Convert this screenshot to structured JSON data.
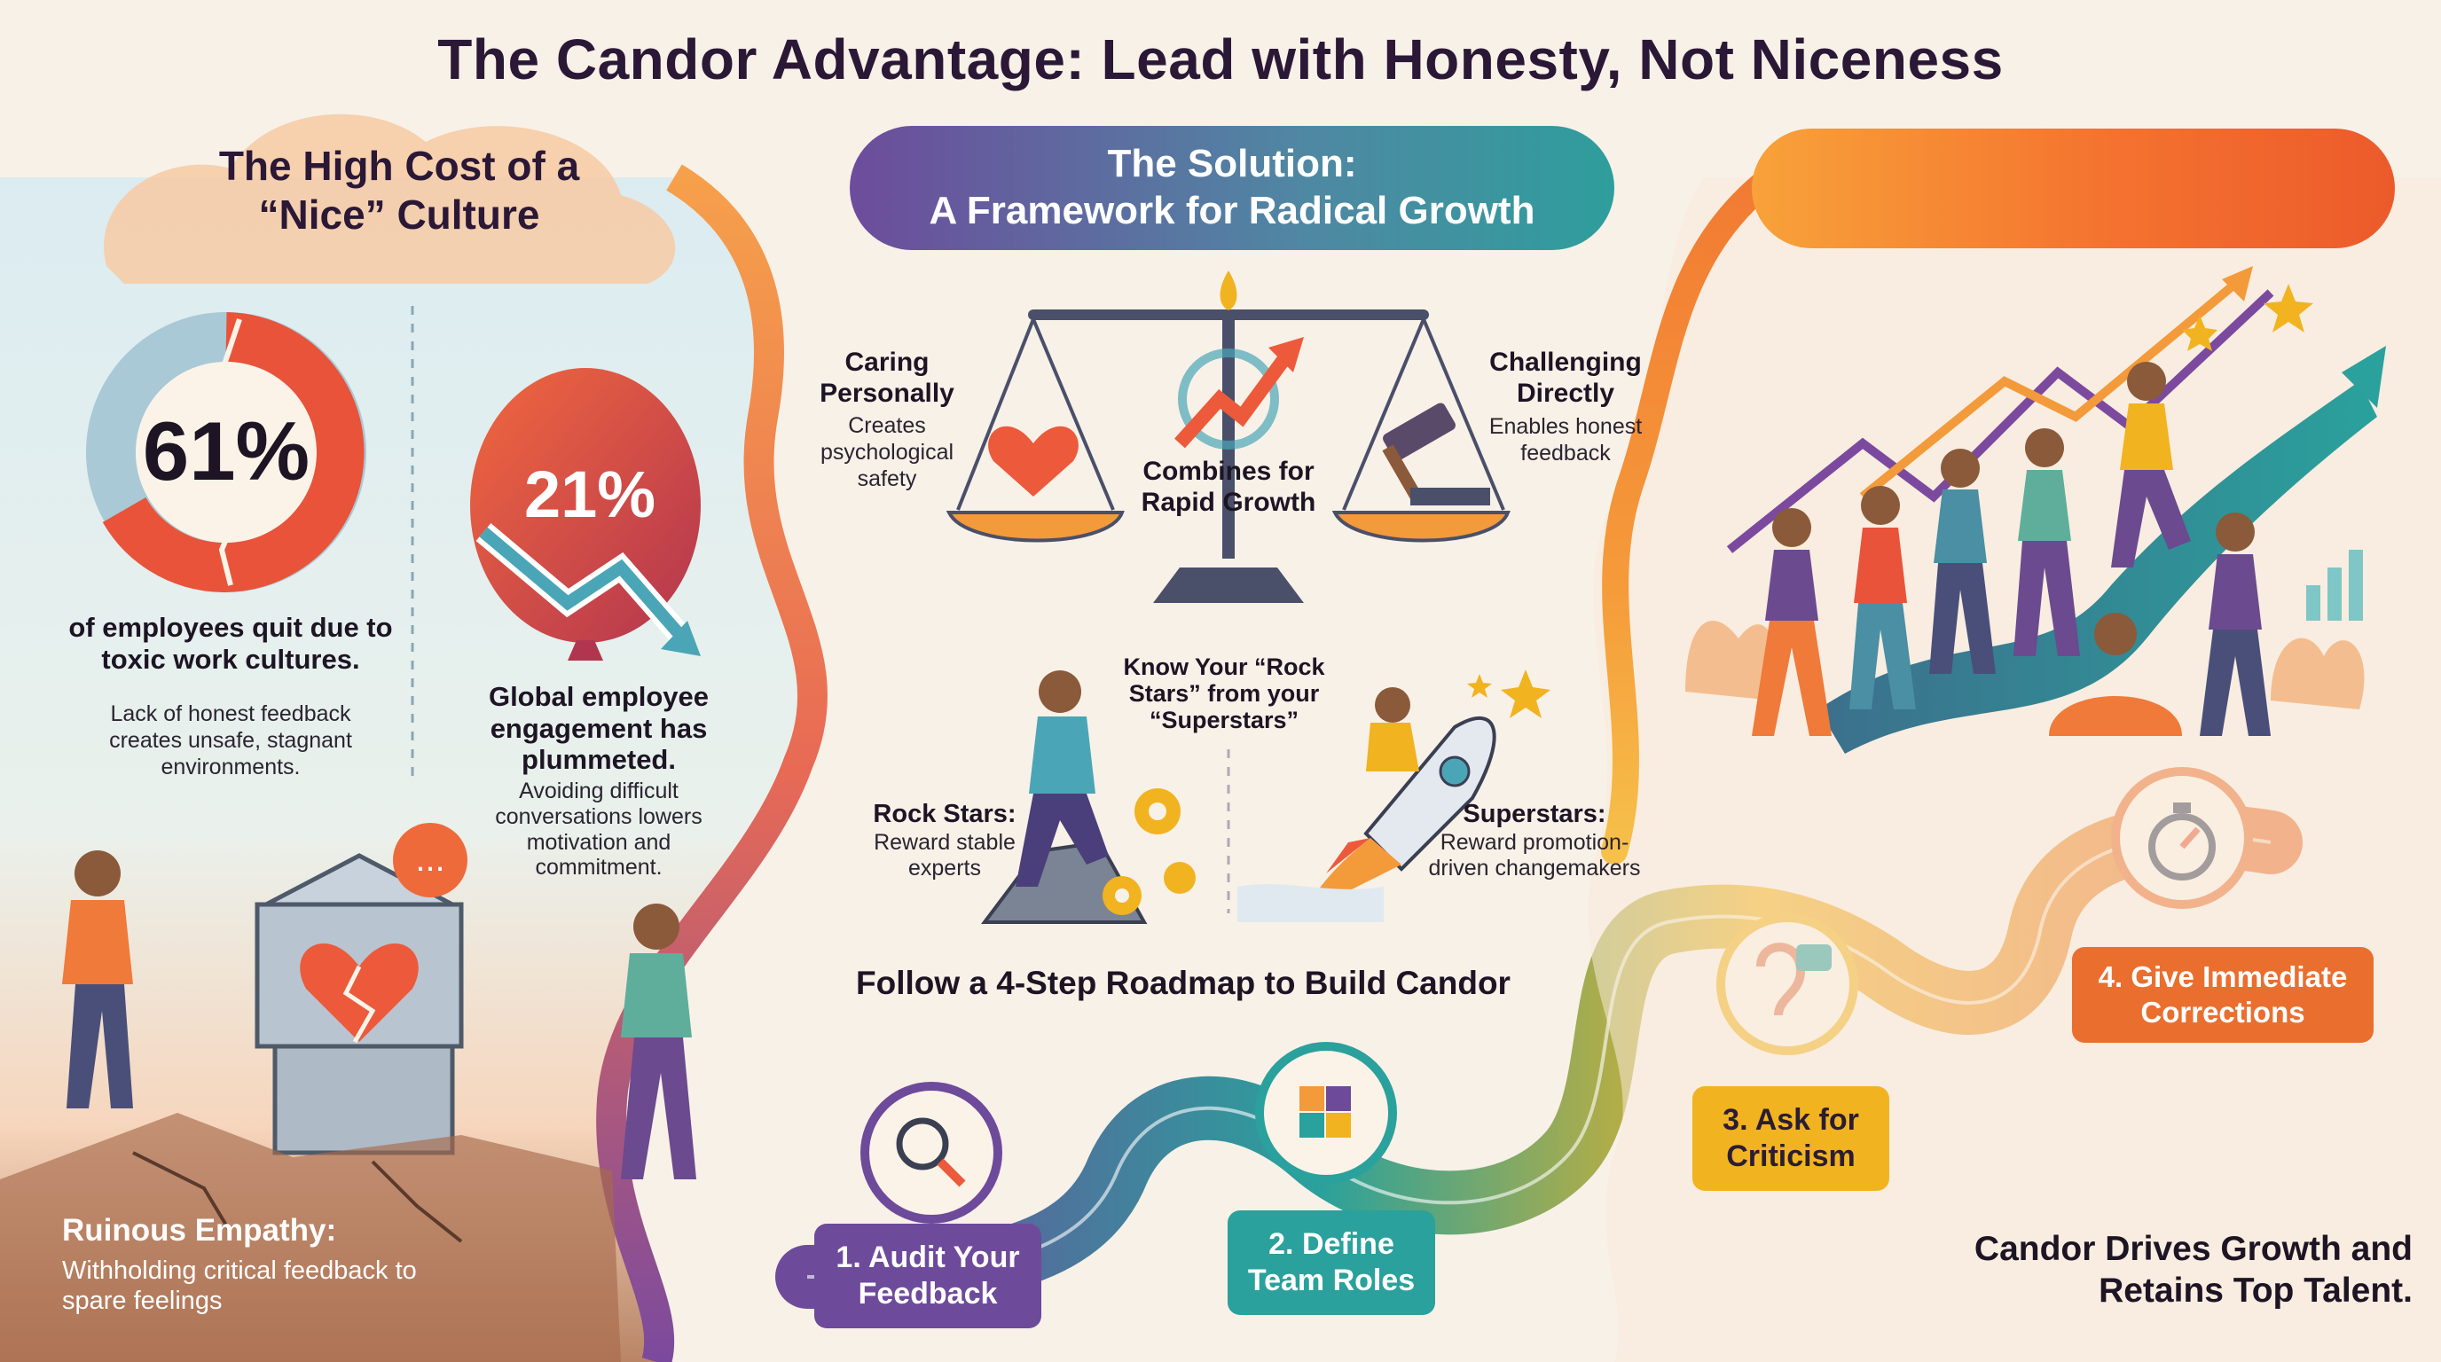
{
  "title": "The Candor Advantage: Lead with Honesty, Not Niceness",
  "left_panel": {
    "heading": "The High Cost of a “Nice” Culture",
    "stat1": {
      "value": "61%",
      "caption": "of employees quit due to toxic work cultures.",
      "sub": "Lack of honest feedback creates unsafe, stagnant environments."
    },
    "stat2": {
      "value": "21%",
      "caption": "Global employee engagement has plummeted.",
      "sub": "Avoiding difficult conversations lowers motivation and commitment."
    },
    "ruinous": {
      "title": "Ruinous Empathy:",
      "sub": "Withholding critical feedback to spare feelings"
    }
  },
  "middle_panel": {
    "solution_line1": "The Solution:",
    "solution_line2": "A Framework for Radical Growth",
    "scale": {
      "left_title": "Caring Personally",
      "left_sub": "Creates psychological safety",
      "center": "Combines for Rapid Growth",
      "right_title": "Challenging Directly",
      "right_sub": "Enables honest feedback"
    },
    "rock_vs_super": "Know Your “Rock Stars” from your “Superstars”",
    "rock": {
      "title": "Rock Stars:",
      "sub": "Reward stable experts"
    },
    "super": {
      "title": "Superstars:",
      "sub": "Reward promotion-driven changemakers"
    },
    "roadmap_title": "Follow a 4-Step Roadmap to Build Candor",
    "steps": [
      {
        "label": "1. Audit Your Feedback",
        "icon": "magnifier-icon",
        "color": "#6e4a9b"
      },
      {
        "label": "2. Define Team Roles",
        "icon": "puzzle-icon",
        "color": "#2aa19c"
      },
      {
        "label": "3. Ask for Criticism",
        "icon": "ear-chat-icon",
        "color": "#f2b320"
      },
      {
        "label": "4. Give Immediate Corrections",
        "icon": "stopwatch-icon",
        "color": "#ea6f2f"
      }
    ]
  },
  "right_panel": {
    "footer": "Candor Drives Growth and Retains Top Talent."
  },
  "colors": {
    "purple": "#6e4a9b",
    "teal": "#2aa19c",
    "yellow": "#f2b320",
    "orange": "#ea6f2f",
    "coral": "#e9533a"
  }
}
